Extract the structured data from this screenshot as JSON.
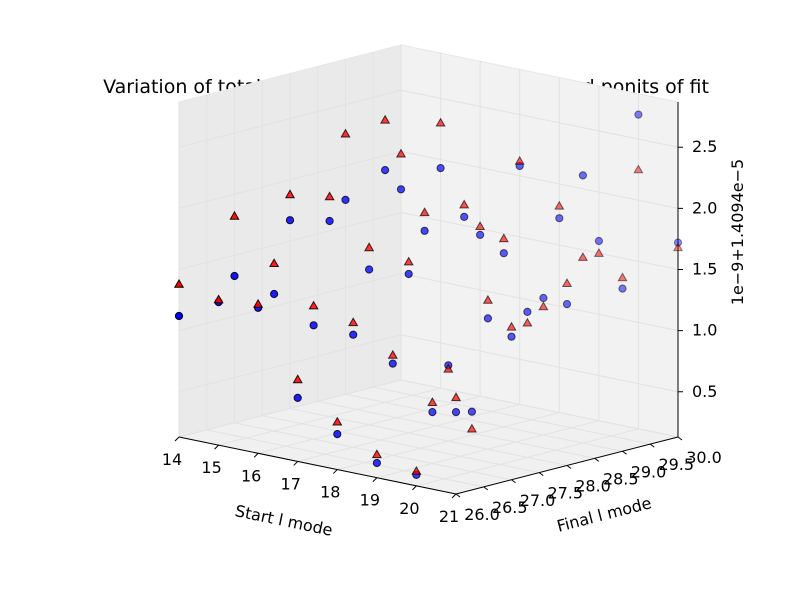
{
  "chart_data": {
    "type": "scatter3d",
    "title": "Variation of total radial self force with start and end ponits of fit",
    "xlabel": "Start l mode",
    "ylabel": "Final l mode",
    "zlabel": "1e−9+1.4094e−5",
    "xlim": [
      14,
      21
    ],
    "ylim": [
      26,
      30
    ],
    "zlim": [
      0.13,
      2.87
    ],
    "x_ticks": [
      "14",
      "15",
      "16",
      "17",
      "18",
      "19",
      "20",
      "21"
    ],
    "y_ticks": [
      "26.0",
      "26.5",
      "27.0",
      "27.5",
      "28.0",
      "28.5",
      "29.0",
      "29.5",
      "30.0"
    ],
    "z_ticks": [
      "0.5",
      "1.0",
      "1.5",
      "2.0",
      "2.5"
    ],
    "grid": true,
    "series": [
      {
        "marker": "circle",
        "color": "#0000ff",
        "points": [
          [
            14,
            26,
            1.12
          ],
          [
            14,
            27,
            1.33
          ],
          [
            14,
            28,
            1.67
          ],
          [
            14,
            29,
            1.72
          ],
          [
            14,
            30,
            1.69
          ],
          [
            15,
            26,
            1.3
          ],
          [
            15,
            27,
            1.25
          ],
          [
            15,
            28,
            1.73
          ],
          [
            15,
            29,
            2.03
          ],
          [
            15,
            30,
            1.93
          ],
          [
            16,
            26,
            1.32
          ],
          [
            16,
            27,
            1.06
          ],
          [
            16,
            28,
            1.4
          ],
          [
            16,
            29,
            1.6
          ],
          [
            16,
            30,
            1.45
          ],
          [
            17,
            26,
            0.65
          ],
          [
            17,
            27,
            1.05
          ],
          [
            17,
            28,
            1.43
          ],
          [
            17,
            29,
            1.78
          ],
          [
            17,
            30,
            2.08
          ],
          [
            18,
            26,
            0.42
          ],
          [
            18,
            27,
            0.88
          ],
          [
            18,
            28,
            0.75
          ],
          [
            18,
            29,
            1.55
          ],
          [
            18,
            30,
            1.72
          ],
          [
            19,
            26,
            0.25
          ],
          [
            19,
            27,
            0.55
          ],
          [
            19,
            28,
            1.2
          ],
          [
            19,
            29,
            1.25
          ],
          [
            19,
            30,
            1.6
          ],
          [
            20,
            26,
            0.22
          ],
          [
            20,
            27,
            0.62
          ],
          [
            20,
            28,
            1.32
          ],
          [
            20,
            29,
            2.32
          ],
          [
            20,
            30,
            2.7
          ],
          [
            21,
            26,
            0.8
          ],
          [
            21,
            27,
            1.3
          ],
          [
            21,
            28,
            1.45
          ],
          [
            21,
            29,
            1.46
          ],
          [
            21,
            30,
            1.72
          ]
        ]
      },
      {
        "marker": "triangle",
        "color": "#ff0000",
        "points": [
          [
            14,
            26,
            1.38
          ],
          [
            14,
            27,
            1.82
          ],
          [
            14,
            28,
            1.88
          ],
          [
            14,
            29,
            2.26
          ],
          [
            14,
            30,
            1.98
          ],
          [
            15,
            26,
            1.32
          ],
          [
            15,
            27,
            1.5
          ],
          [
            15,
            28,
            1.93
          ],
          [
            15,
            29,
            2.44
          ],
          [
            15,
            30,
            2.3
          ],
          [
            16,
            26,
            1.35
          ],
          [
            16,
            27,
            1.22
          ],
          [
            16,
            28,
            1.58
          ],
          [
            16,
            29,
            1.75
          ],
          [
            16,
            30,
            1.52
          ],
          [
            17,
            26,
            0.8
          ],
          [
            17,
            27,
            1.15
          ],
          [
            17,
            28,
            1.53
          ],
          [
            17,
            29,
            1.88
          ],
          [
            17,
            30,
            2.12
          ],
          [
            18,
            26,
            0.52
          ],
          [
            18,
            27,
            0.95
          ],
          [
            18,
            28,
            0.72
          ],
          [
            18,
            29,
            1.67
          ],
          [
            18,
            30,
            1.82
          ],
          [
            19,
            26,
            0.32
          ],
          [
            19,
            27,
            0.63
          ],
          [
            19,
            28,
            1.35
          ],
          [
            19,
            29,
            1.18
          ],
          [
            19,
            30,
            1.5
          ],
          [
            20,
            26,
            0.25
          ],
          [
            20,
            27,
            0.48
          ],
          [
            20,
            28,
            1.23
          ],
          [
            20,
            29,
            1.65
          ],
          [
            20,
            30,
            2.25
          ],
          [
            21,
            26,
            0.92
          ],
          [
            21,
            27,
            1.38
          ],
          [
            21,
            28,
            1.62
          ],
          [
            21,
            29,
            1.55
          ],
          [
            21,
            30,
            1.68
          ]
        ]
      }
    ]
  }
}
